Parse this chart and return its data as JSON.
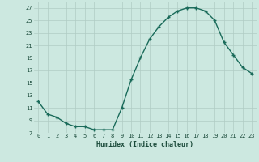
{
  "x": [
    0,
    1,
    2,
    3,
    4,
    5,
    6,
    7,
    8,
    9,
    10,
    11,
    12,
    13,
    14,
    15,
    16,
    17,
    18,
    19,
    20,
    21,
    22,
    23
  ],
  "y": [
    12,
    10,
    9.5,
    8.5,
    8,
    8,
    7.5,
    7.5,
    7.5,
    11,
    15.5,
    19,
    22,
    24,
    25.5,
    26.5,
    27,
    27,
    26.5,
    25,
    21.5,
    19.5,
    17.5,
    16.5
  ],
  "line_color": "#1a6b5a",
  "marker": "+",
  "bg_color": "#cce8e0",
  "grid_color": "#b0ccc4",
  "xlabel": "Humidex (Indice chaleur)",
  "ylim": [
    7,
    28
  ],
  "yticks": [
    7,
    9,
    11,
    13,
    15,
    17,
    19,
    21,
    23,
    25,
    27
  ],
  "xticks": [
    0,
    1,
    2,
    3,
    4,
    5,
    6,
    7,
    8,
    9,
    10,
    11,
    12,
    13,
    14,
    15,
    16,
    17,
    18,
    19,
    20,
    21,
    22,
    23
  ],
  "tick_color": "#1a4a3a",
  "label_color": "#1a4a3a",
  "linewidth": 1.0,
  "markersize": 3.5,
  "markeredgewidth": 1.0
}
